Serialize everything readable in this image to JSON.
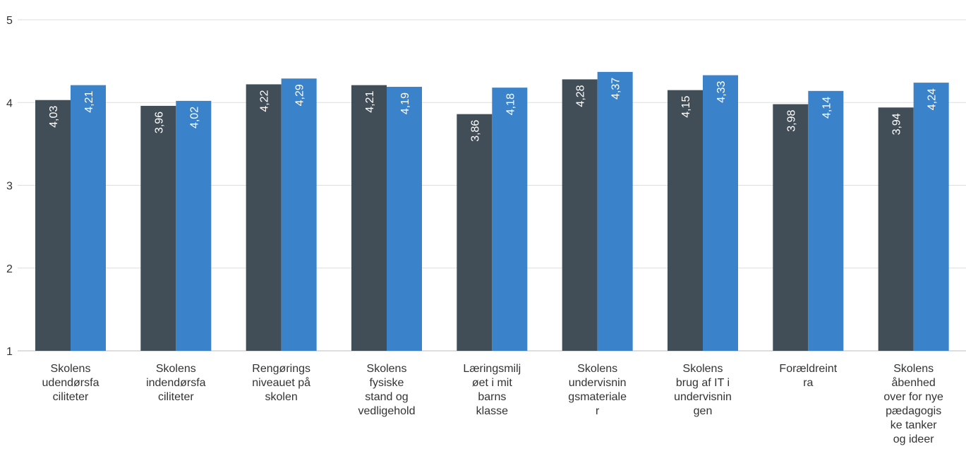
{
  "chart_data": {
    "type": "bar",
    "title": "",
    "xlabel": "",
    "ylabel": "",
    "ylim": [
      1,
      5
    ],
    "yticks": [
      "1",
      "2",
      "3",
      "4",
      "5"
    ],
    "grid": true,
    "legend": "none",
    "categories": [
      "Skolens\nudendørsfa\nciliteter",
      "Skolens\nindendørsfa\nciliteter",
      "Rengørings\nniveauet på\nskolen",
      "Skolens\nfysiske\nstand og\nvedligehold",
      "Læringsmilj\nøet i mit\nbarns\nklasse",
      "Skolens\nundervisnin\ngsmateriale\nr",
      "Skolens\nbrug af IT i\nundervisnin\ngen",
      "Forældreint\nra",
      "Skolens\nåbenhed\nover for nye\npædagogis\nke tanker\nog ideer"
    ],
    "series": [
      {
        "color": "#414d57",
        "values": [
          4.03,
          3.96,
          4.22,
          4.21,
          3.86,
          4.28,
          4.15,
          3.98,
          3.94
        ],
        "labels": [
          "4,03",
          "3,96",
          "4,22",
          "4,21",
          "3,86",
          "4,28",
          "4,15",
          "3,98",
          "3,94"
        ]
      },
      {
        "color": "#3a83cb",
        "values": [
          4.21,
          4.02,
          4.29,
          4.19,
          4.18,
          4.37,
          4.33,
          4.14,
          4.24
        ],
        "labels": [
          "4,21",
          "4,02",
          "4,29",
          "4,19",
          "4,18",
          "4,37",
          "4,33",
          "4,14",
          "4,24"
        ]
      }
    ]
  }
}
